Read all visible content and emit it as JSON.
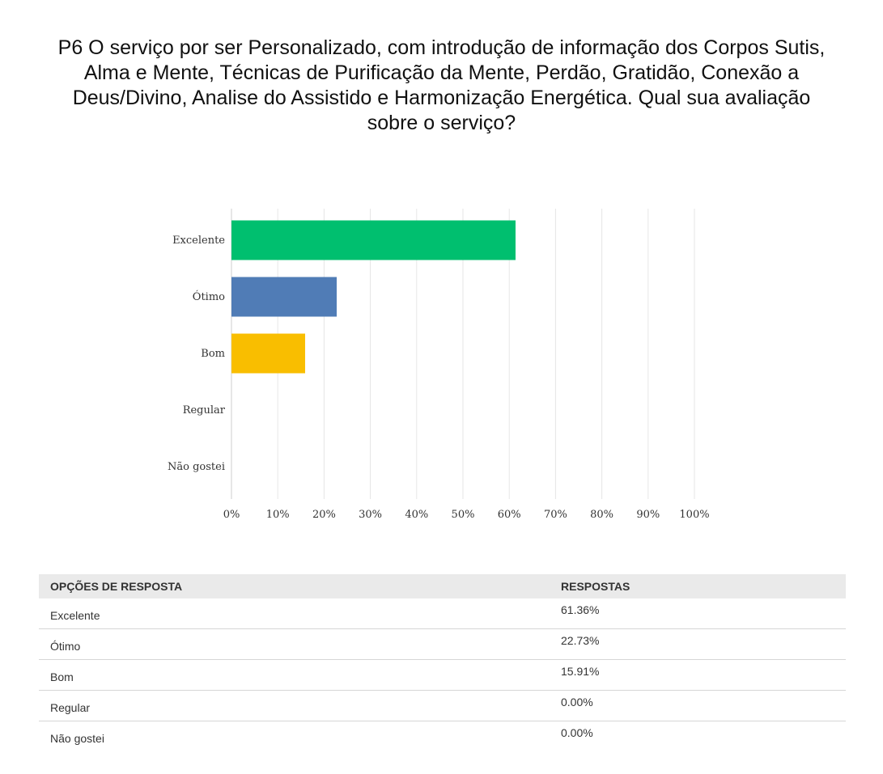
{
  "question": {
    "title": "P6 O serviço por ser Personalizado, com introdução de informação dos Corpos Sutis, Alma e Mente, Técnicas de Purificação da Mente, Perdão, Gratidão, Conexão a Deus/Divino, Analise do Assistido e Harmonização Energética. Qual sua avaliação sobre o serviço?"
  },
  "chart_data": {
    "type": "bar",
    "orientation": "horizontal",
    "categories": [
      "Excelente",
      "Ótimo",
      "Bom",
      "Regular",
      "Não gostei"
    ],
    "values": [
      61.36,
      22.73,
      15.91,
      0.0,
      0.0
    ],
    "colors": [
      "#00bf6f",
      "#507cb6",
      "#f9be00",
      "#6bc8cd",
      "#a0b1ba"
    ],
    "x_ticks": [
      "0%",
      "10%",
      "20%",
      "30%",
      "40%",
      "50%",
      "60%",
      "70%",
      "80%",
      "90%",
      "100%"
    ],
    "xlim": [
      0,
      100
    ],
    "grid": true,
    "legend": "none"
  },
  "table": {
    "headers": [
      "OPÇÕES DE RESPOSTA",
      "RESPOSTAS"
    ],
    "rows": [
      {
        "option": "Excelente",
        "percent": "61.36%"
      },
      {
        "option": "Ótimo",
        "percent": "22.73%"
      },
      {
        "option": "Bom",
        "percent": "15.91%"
      },
      {
        "option": "Regular",
        "percent": "0.00%"
      },
      {
        "option": "Não gostei",
        "percent": "0.00%"
      }
    ]
  }
}
